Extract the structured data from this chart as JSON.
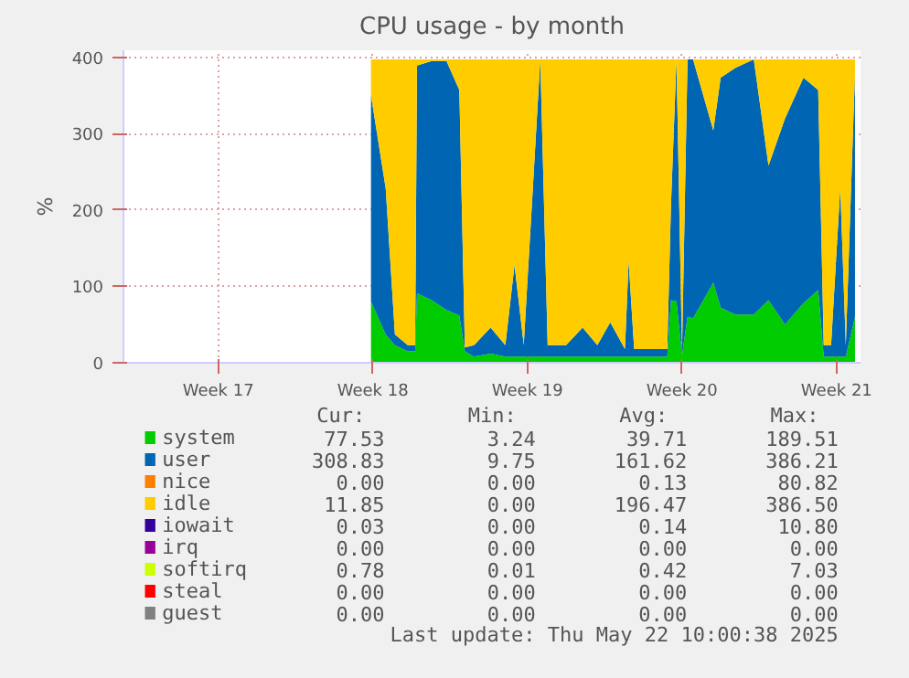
{
  "chart_data": {
    "type": "area",
    "stacked": true,
    "title": "CPU usage - by month",
    "ylabel": "%",
    "x": [
      "2025-04-30T08:00",
      "2025-05-01T00:00",
      "2025-05-01T10:00",
      "2025-05-02T00:00",
      "2025-05-02T08:00",
      "2025-05-02T10:00",
      "2025-05-03T02:00",
      "2025-05-03T18:00",
      "2025-05-04T08:00",
      "2025-05-04T14:00",
      "2025-05-05T00:00",
      "2025-05-05T18:00",
      "2025-05-06T10:00",
      "2025-05-06T20:00",
      "2025-05-07T06:00",
      "2025-05-08T00:00",
      "2025-05-08T08:00",
      "2025-05-09T04:00",
      "2025-05-09T22:00",
      "2025-05-10T14:00",
      "2025-05-11T04:00",
      "2025-05-11T20:00",
      "2025-05-12T00:00",
      "2025-05-12T06:00",
      "2025-05-13T02:00",
      "2025-05-13T18:00",
      "2025-05-13T22:00",
      "2025-05-14T04:00",
      "2025-05-14T10:00",
      "2025-05-14T16:00",
      "2025-05-14T22:00",
      "2025-05-15T20:00",
      "2025-05-16T04:00",
      "2025-05-16T20:00",
      "2025-05-17T16:00",
      "2025-05-18T08:00",
      "2025-05-19T02:00",
      "2025-05-19T22:00",
      "2025-05-20T14:00",
      "2025-05-20T20:00",
      "2025-05-21T04:00",
      "2025-05-21T14:00",
      "2025-05-21T20:00",
      "2025-05-22T06:00"
    ],
    "xlim": [
      "2025-04-19T03:00",
      "2025-05-22T12:00"
    ],
    "xticks": [
      {
        "value": "2025-04-23T10:00",
        "label": "Week 17"
      },
      {
        "value": "2025-04-30T10:00",
        "label": "Week 18"
      },
      {
        "value": "2025-05-07T10:00",
        "label": "Week 19"
      },
      {
        "value": "2025-05-14T10:00",
        "label": "Week 20"
      },
      {
        "value": "2025-05-21T10:00",
        "label": "Week 21"
      }
    ],
    "ylim": [
      0,
      409
    ],
    "yticks": [
      0,
      100,
      200,
      300,
      400
    ],
    "grid": true,
    "legend": "bottom",
    "series": [
      {
        "name": "system",
        "color": "#00cc00",
        "values": [
          80,
          37,
          23,
          15,
          15,
          91,
          82,
          69,
          62,
          15,
          8,
          12,
          8,
          8,
          8,
          8,
          8,
          8,
          8,
          8,
          8,
          8,
          8,
          8,
          8,
          8,
          82,
          80,
          10,
          60,
          58,
          105,
          72,
          63,
          63,
          82,
          50,
          78,
          95,
          8,
          8,
          8,
          8,
          60
        ]
      },
      {
        "name": "user",
        "color": "#0066b3",
        "values": [
          270,
          191,
          14,
          8,
          8,
          298,
          313,
          326,
          295,
          5,
          15,
          34,
          15,
          120,
          15,
          389,
          15,
          15,
          38,
          15,
          45,
          10,
          125,
          10,
          10,
          10,
          124,
          317,
          5,
          337,
          339,
          199,
          301,
          323,
          334,
          176,
          270,
          295,
          262,
          15,
          15,
          221,
          15,
          320
        ]
      },
      {
        "name": "nice",
        "color": "#ff8000",
        "values": [
          null,
          null,
          null,
          null,
          null,
          null,
          null,
          null,
          null,
          null,
          null,
          null,
          null,
          null,
          null,
          null,
          null,
          null,
          null,
          null,
          null,
          null,
          null,
          null,
          null,
          null,
          null,
          null,
          null,
          null,
          null,
          null,
          null,
          null,
          null,
          null,
          null,
          null,
          null,
          null,
          null,
          null,
          null,
          null
        ]
      },
      {
        "name": "idle",
        "color": "#ffcc00",
        "values": [
          47,
          169,
          360,
          374,
          374,
          8,
          2,
          2,
          40,
          377,
          374,
          351,
          374,
          269,
          374,
          0,
          374,
          374,
          351,
          374,
          344,
          379,
          264,
          379,
          379,
          379,
          191,
          0,
          382,
          0,
          0,
          93,
          24,
          11,
          0,
          139,
          77,
          24,
          40,
          374,
          374,
          168,
          374,
          17
        ]
      },
      {
        "name": "iowait",
        "color": "#330099",
        "values": [
          null,
          null,
          null,
          null,
          null,
          null,
          null,
          null,
          null,
          null,
          null,
          null,
          null,
          null,
          null,
          null,
          null,
          null,
          null,
          null,
          null,
          null,
          null,
          null,
          null,
          null,
          null,
          null,
          null,
          null,
          null,
          null,
          null,
          null,
          null,
          null,
          null,
          null,
          null,
          null,
          null,
          null,
          null,
          null
        ]
      },
      {
        "name": "irq",
        "color": "#990099",
        "values": [
          null,
          null,
          null,
          null,
          null,
          null,
          null,
          null,
          null,
          null,
          null,
          null,
          null,
          null,
          null,
          null,
          null,
          null,
          null,
          null,
          null,
          null,
          null,
          null,
          null,
          null,
          null,
          null,
          null,
          null,
          null,
          null,
          null,
          null,
          null,
          null,
          null,
          null,
          null,
          null,
          null,
          null,
          null,
          null
        ]
      },
      {
        "name": "softirq",
        "color": "#ccff00",
        "values": [
          null,
          null,
          null,
          null,
          null,
          null,
          null,
          null,
          null,
          null,
          null,
          null,
          null,
          null,
          null,
          null,
          null,
          null,
          null,
          null,
          null,
          null,
          null,
          null,
          null,
          null,
          null,
          null,
          null,
          null,
          null,
          null,
          null,
          null,
          null,
          null,
          null,
          null,
          null,
          null,
          null,
          null,
          null,
          null
        ]
      },
      {
        "name": "steal",
        "color": "#ff0000",
        "values": [
          null,
          null,
          null,
          null,
          null,
          null,
          null,
          null,
          null,
          null,
          null,
          null,
          null,
          null,
          null,
          null,
          null,
          null,
          null,
          null,
          null,
          null,
          null,
          null,
          null,
          null,
          null,
          null,
          null,
          null,
          null,
          null,
          null,
          null,
          null,
          null,
          null,
          null,
          null,
          null,
          null,
          null,
          null,
          null
        ]
      },
      {
        "name": "guest",
        "color": "#808080",
        "values": [
          null,
          null,
          null,
          null,
          null,
          null,
          null,
          null,
          null,
          null,
          null,
          null,
          null,
          null,
          null,
          null,
          null,
          null,
          null,
          null,
          null,
          null,
          null,
          null,
          null,
          null,
          null,
          null,
          null,
          null,
          null,
          null,
          null,
          null,
          null,
          null,
          null,
          null,
          null,
          null,
          null,
          null,
          null,
          null
        ]
      }
    ],
    "annotations": [
      "Cur:",
      "Min:",
      "Avg:",
      "Max:",
      "77.53",
      "3.24",
      "39.71",
      "189.51",
      "308.83",
      "9.75",
      "161.62",
      "386.21",
      "0.00",
      "0.00",
      "0.13",
      "80.82",
      "11.85",
      "0.00",
      "196.47",
      "386.50",
      "0.03",
      "0.00",
      "0.14",
      "10.80",
      "0.00",
      "0.00",
      "0.00",
      "0.00",
      "0.78",
      "0.01",
      "0.42",
      "7.03",
      "0.00",
      "0.00",
      "0.00",
      "0.00",
      "0.00",
      "0.00",
      "0.00",
      "0.00",
      "Last update: Thu May 22 10:00:38 2025"
    ]
  }
}
